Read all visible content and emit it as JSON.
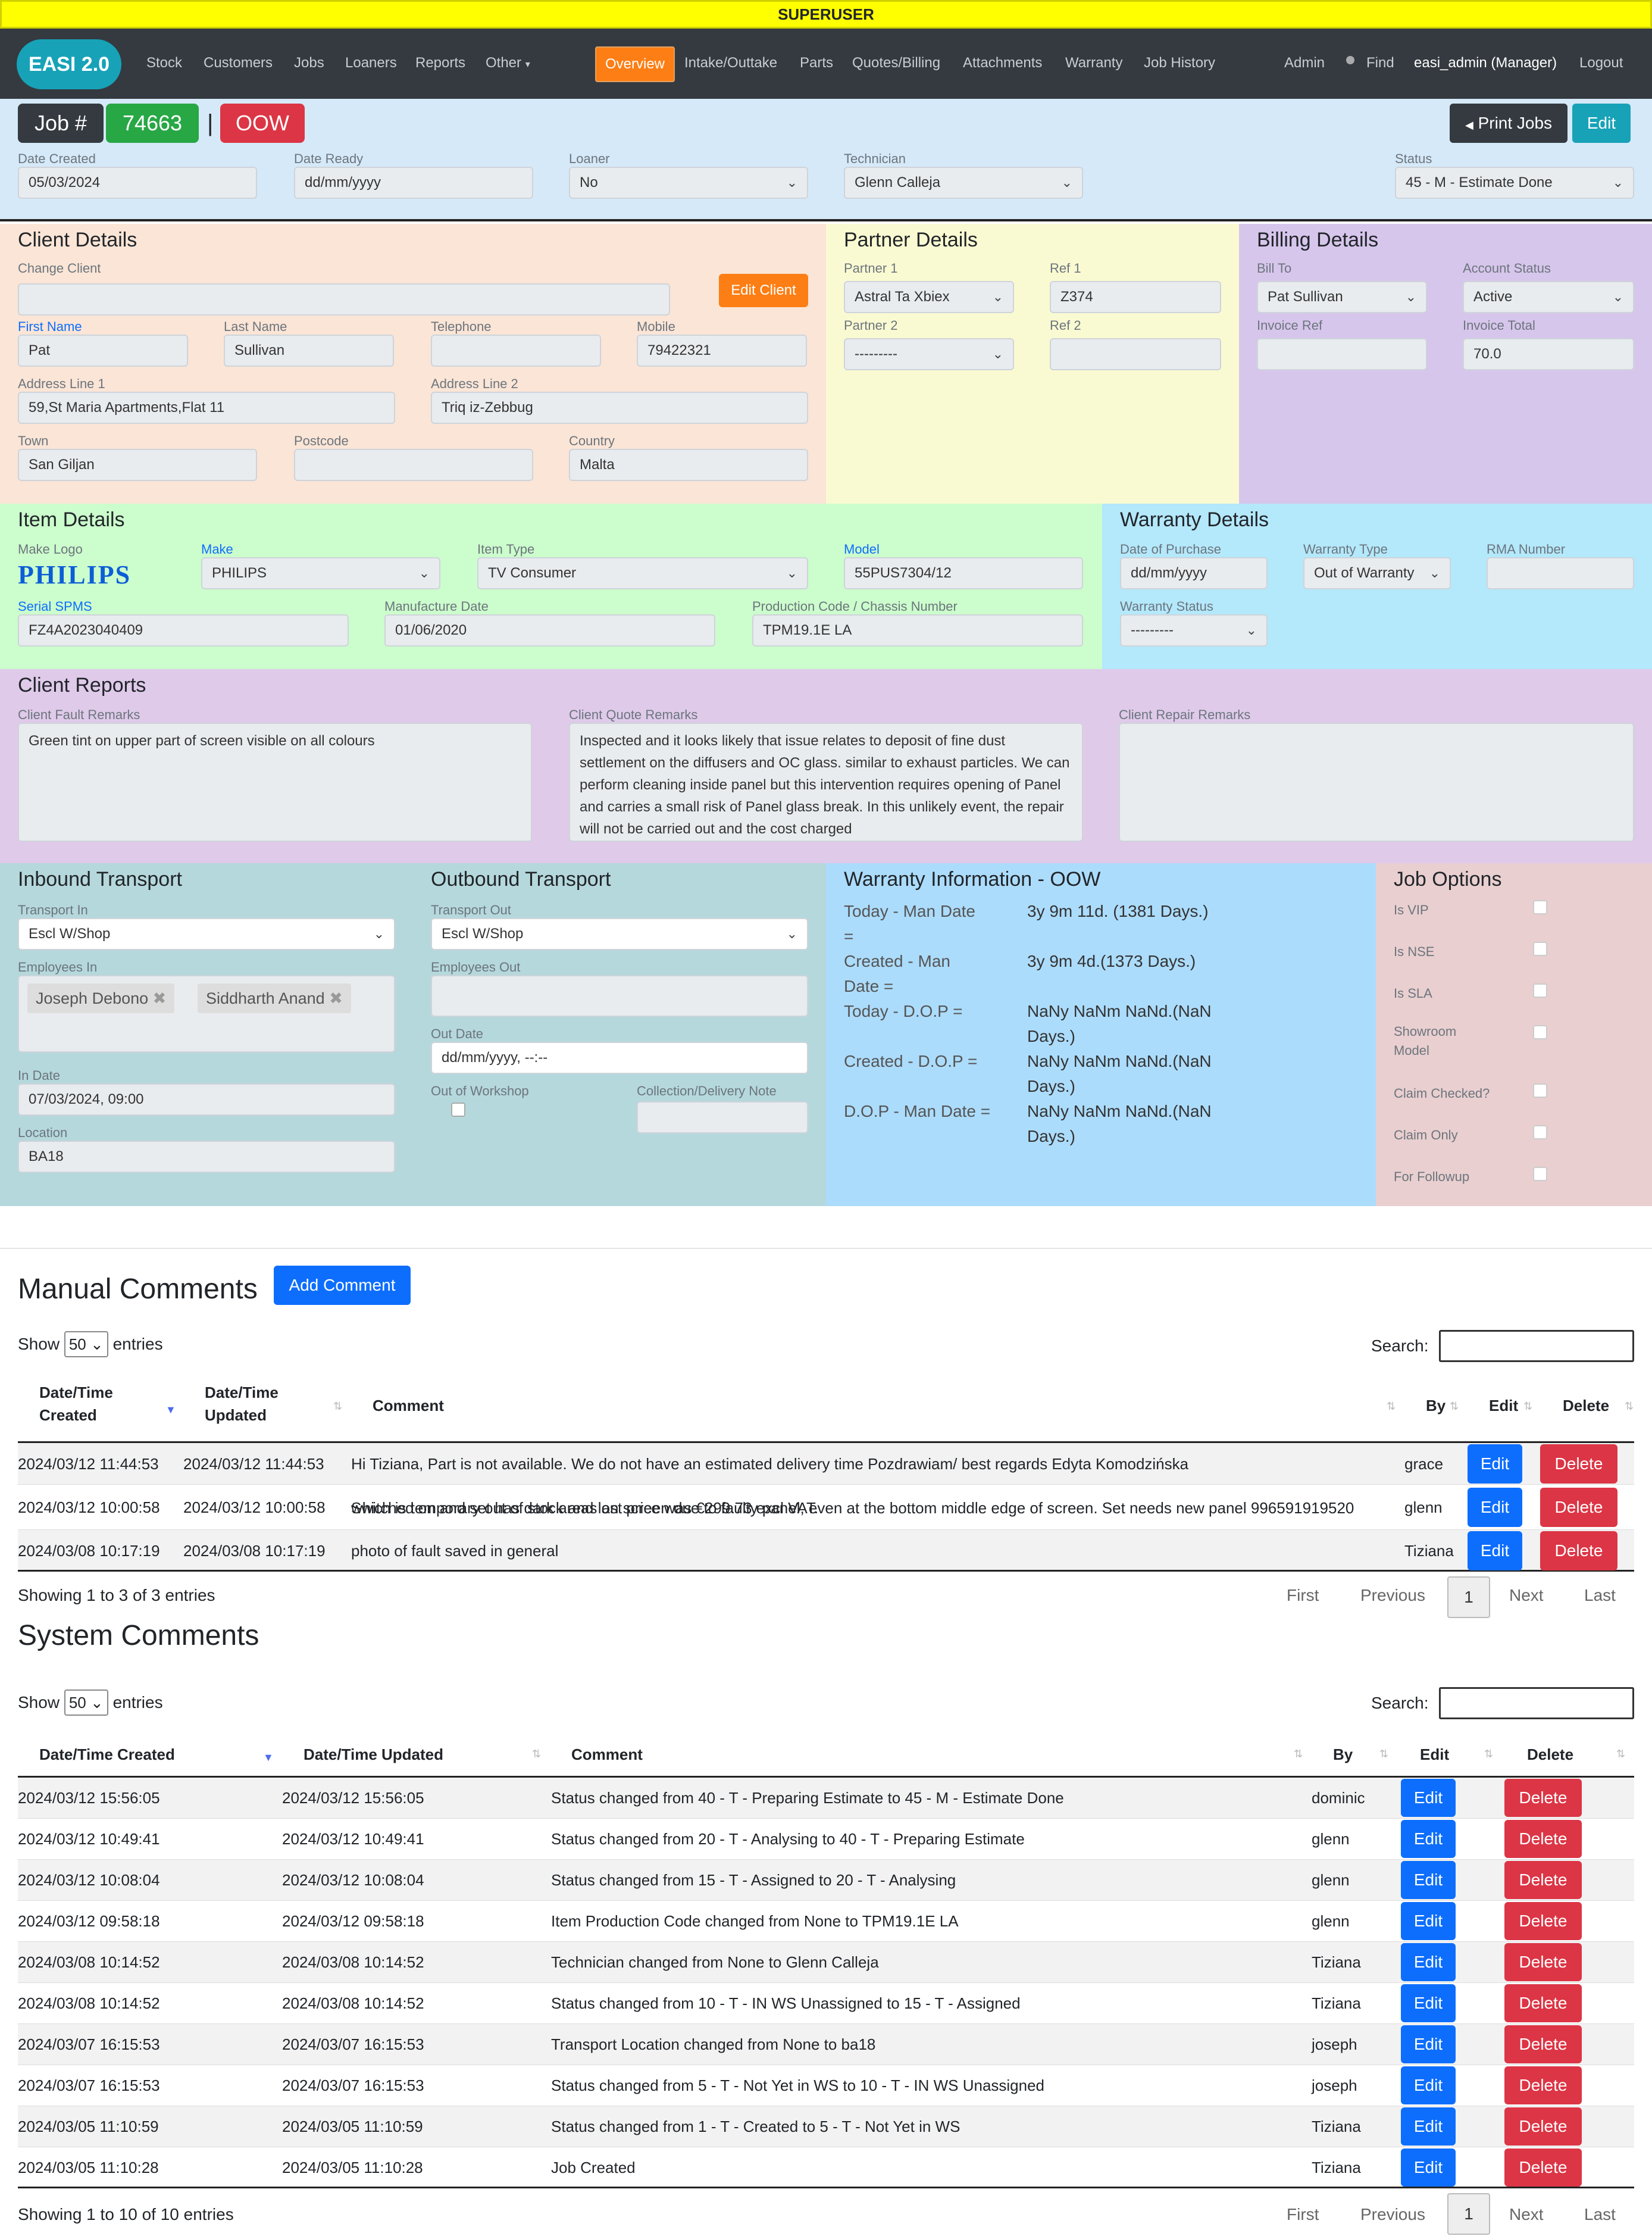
{
  "banner": "SUPERUSER",
  "brand": "EASI 2.0",
  "nav_left": [
    "Stock",
    "Customers",
    "Jobs",
    "Loaners",
    "Reports",
    "Other"
  ],
  "nav_tabs": [
    "Overview",
    "Intake/Outtake",
    "Parts",
    "Quotes/Billing",
    "Attachments",
    "Warranty",
    "Job History"
  ],
  "nav_right": {
    "admin": "Admin",
    "find": "Find",
    "user": "easi_admin (Manager)",
    "logout": "Logout"
  },
  "job": {
    "label": "Job #",
    "number": "74663",
    "sep": "|",
    "warranty": "OOW",
    "print": "Print Jobs",
    "edit": "Edit"
  },
  "header_fields": {
    "date_created": {
      "label": "Date Created",
      "value": "05/03/2024"
    },
    "date_ready": {
      "label": "Date Ready",
      "value": "dd/mm/yyyy"
    },
    "loaner": {
      "label": "Loaner",
      "value": "No"
    },
    "technician": {
      "label": "Technician",
      "value": "Glenn Calleja"
    },
    "status": {
      "label": "Status",
      "value": "45 - M - Estimate Done"
    }
  },
  "client": {
    "title": "Client Details",
    "change_label": "Change Client",
    "edit_btn": "Edit Client",
    "first_name": {
      "label": "First Name",
      "value": "Pat"
    },
    "last_name": {
      "label": "Last Name",
      "value": "Sullivan"
    },
    "telephone": {
      "label": "Telephone",
      "value": ""
    },
    "mobile": {
      "label": "Mobile",
      "value": "79422321"
    },
    "addr1": {
      "label": "Address Line 1",
      "value": "59,St Maria Apartments,Flat 11"
    },
    "addr2": {
      "label": "Address Line 2",
      "value": "Triq iz-Zebbug"
    },
    "town": {
      "label": "Town",
      "value": "San Giljan"
    },
    "postcode": {
      "label": "Postcode",
      "value": ""
    },
    "country": {
      "label": "Country",
      "value": "Malta"
    }
  },
  "partner": {
    "title": "Partner Details",
    "p1": {
      "label": "Partner 1",
      "value": "Astral Ta Xbiex"
    },
    "ref1": {
      "label": "Ref 1",
      "value": "Z374"
    },
    "p2": {
      "label": "Partner 2",
      "value": "---------"
    },
    "ref2": {
      "label": "Ref 2",
      "value": ""
    }
  },
  "billing": {
    "title": "Billing Details",
    "bill_to": {
      "label": "Bill To",
      "value": "Pat Sullivan"
    },
    "account_status": {
      "label": "Account Status",
      "value": "Active"
    },
    "invoice_ref": {
      "label": "Invoice Ref",
      "value": ""
    },
    "invoice_total": {
      "label": "Invoice Total",
      "value": "70.0"
    }
  },
  "item": {
    "title": "Item Details",
    "make_logo": {
      "label": "Make Logo",
      "value": "PHILIPS"
    },
    "make": {
      "label": "Make",
      "value": "PHILIPS"
    },
    "item_type": {
      "label": "Item Type",
      "value": "TV Consumer"
    },
    "model": {
      "label": "Model",
      "value": "55PUS7304/12"
    },
    "serial": {
      "label": "Serial SPMS",
      "value": "FZ4A2023040409"
    },
    "manufacture_date": {
      "label": "Manufacture Date",
      "value": "01/06/2020"
    },
    "production_code": {
      "label": "Production Code / Chassis Number",
      "value": "TPM19.1E LA"
    }
  },
  "warranty": {
    "title": "Warranty Details",
    "dop": {
      "label": "Date of Purchase",
      "value": "dd/mm/yyyy"
    },
    "type": {
      "label": "Warranty Type",
      "value": "Out of Warranty"
    },
    "rma": {
      "label": "RMA Number",
      "value": ""
    },
    "status": {
      "label": "Warranty Status",
      "value": "---------"
    }
  },
  "reports": {
    "title": "Client Reports",
    "fault": {
      "label": "Client Fault Remarks",
      "value": "Green tint on upper part of screen visible on all colours"
    },
    "quote": {
      "label": "Client Quote Remarks",
      "value": "Inspected and it looks likely that issue relates to deposit of fine dust settlement on the diffusers and OC glass. similar to exhaust particles. We can perform cleaning inside panel but this intervention requires opening of Panel and carries a small risk of Panel glass break. In this unlikely event, the repair will not be carried out and the cost charged"
    },
    "repair": {
      "label": "Client Repair Remarks",
      "value": ""
    }
  },
  "inbound": {
    "title": "Inbound Transport",
    "transport_in": {
      "label": "Transport In",
      "value": "Escl W/Shop"
    },
    "employees_label": "Employees In",
    "employees": [
      "Joseph Debono",
      "Siddharth Anand"
    ],
    "in_date": {
      "label": "In Date",
      "value": "07/03/2024, 09:00"
    },
    "location": {
      "label": "Location",
      "value": "BA18"
    }
  },
  "outbound": {
    "title": "Outbound Transport",
    "transport_out": {
      "label": "Transport Out",
      "value": "Escl W/Shop"
    },
    "employees_out": {
      "label": "Employees Out",
      "value": ""
    },
    "out_date": {
      "label": "Out Date",
      "value": "dd/mm/yyyy, --:--"
    },
    "out_of_workshop": "Out of Workshop",
    "collection_note": {
      "label": "Collection/Delivery Note",
      "value": ""
    }
  },
  "warranty_info": {
    "title": "Warranty Information - OOW",
    "rows": [
      {
        "k1": "Today - Man Date",
        "k2": "=",
        "v1": "3y 9m 11d. (1381 Days.)",
        "v2": ""
      },
      {
        "k1": "Created - Man",
        "k2": "Date =",
        "v1": "3y 9m 4d.(1373 Days.)",
        "v2": ""
      },
      {
        "k1": "Today - D.O.P =",
        "k2": "",
        "v1": "NaNy NaNm NaNd.(NaN",
        "v2": "Days.)"
      },
      {
        "k1": "Created - D.O.P =",
        "k2": "",
        "v1": "NaNy NaNm NaNd.(NaN",
        "v2": "Days.)"
      },
      {
        "k1": "D.O.P - Man Date =",
        "k2": "",
        "v1": "NaNy NaNm NaNd.(NaN",
        "v2": "Days.)"
      }
    ]
  },
  "job_options": {
    "title": "Job Options",
    "options": [
      "Is VIP",
      "Is NSE",
      "Is SLA",
      "Showroom",
      "Claim Checked?",
      "Claim Only",
      "For Followup"
    ],
    "option4_line2": "Model"
  },
  "manual_comments": {
    "title": "Manual Comments",
    "add_btn": "Add Comment",
    "show": "Show",
    "entries_value": "50",
    "entries": "entries",
    "search": "Search:",
    "headers": [
      "Date/Time",
      "Created",
      "Date/Time",
      "Updated",
      "Comment",
      "By",
      "Edit",
      "Delete"
    ],
    "rows": [
      {
        "created": "2024/03/12 11:44:53",
        "updated": "2024/03/12 11:44:53",
        "comment": "Hi Tiziana, Part is not available. We do not have an estimated delivery time Pozdrawiam/ best regards Edyta Komodzińska",
        "comment2": "",
        "by": "grace"
      },
      {
        "created": "2024/03/12 10:00:58",
        "updated": "2024/03/12 10:00:58",
        "comment": "Switched on and set has dark areas on screen due to faulty panel, even at the bottom middle edge of screen. Set needs new panel 996591919520",
        "comment2": "which is temporary out of stock and last price was €299.73 excl VAT.",
        "by": "glenn"
      },
      {
        "created": "2024/03/08 10:17:19",
        "updated": "2024/03/08 10:17:19",
        "comment": "photo of fault saved in general",
        "comment2": "",
        "by": "Tiziana"
      }
    ],
    "edit": "Edit",
    "delete": "Delete",
    "info": "Showing 1 to 3 of 3 entries",
    "pager": [
      "First",
      "Previous",
      "1",
      "Next",
      "Last"
    ]
  },
  "system_comments": {
    "title": "System Comments",
    "show": "Show",
    "entries_value": "50",
    "entries": "entries",
    "search": "Search:",
    "headers": [
      "Date/Time Created",
      "Date/Time Updated",
      "Comment",
      "By",
      "Edit",
      "Delete"
    ],
    "rows": [
      {
        "created": "2024/03/12 15:56:05",
        "updated": "2024/03/12 15:56:05",
        "comment": "Status changed from 40 - T - Preparing Estimate to 45 - M - Estimate Done",
        "by": "dominic"
      },
      {
        "created": "2024/03/12 10:49:41",
        "updated": "2024/03/12 10:49:41",
        "comment": "Status changed from 20 - T - Analysing to 40 - T - Preparing Estimate",
        "by": "glenn"
      },
      {
        "created": "2024/03/12 10:08:04",
        "updated": "2024/03/12 10:08:04",
        "comment": "Status changed from 15 - T - Assigned to 20 - T - Analysing",
        "by": "glenn"
      },
      {
        "created": "2024/03/12 09:58:18",
        "updated": "2024/03/12 09:58:18",
        "comment": "Item Production Code changed from None to TPM19.1E LA",
        "by": "glenn"
      },
      {
        "created": "2024/03/08 10:14:52",
        "updated": "2024/03/08 10:14:52",
        "comment": "Technician changed from None to Glenn Calleja",
        "by": "Tiziana"
      },
      {
        "created": "2024/03/08 10:14:52",
        "updated": "2024/03/08 10:14:52",
        "comment": "Status changed from 10 - T - IN WS Unassigned to 15 - T - Assigned",
        "by": "Tiziana"
      },
      {
        "created": "2024/03/07 16:15:53",
        "updated": "2024/03/07 16:15:53",
        "comment": "Transport Location changed from None to ba18",
        "by": "joseph"
      },
      {
        "created": "2024/03/07 16:15:53",
        "updated": "2024/03/07 16:15:53",
        "comment": "Status changed from 5 - T - Not Yet in WS to 10 - T - IN WS Unassigned",
        "by": "joseph"
      },
      {
        "created": "2024/03/05 11:10:59",
        "updated": "2024/03/05 11:10:59",
        "comment": "Status changed from 1 - T - Created to 5 - T - Not Yet in WS",
        "by": "Tiziana"
      },
      {
        "created": "2024/03/05 11:10:28",
        "updated": "2024/03/05 11:10:28",
        "comment": "Job Created",
        "by": "Tiziana"
      }
    ],
    "edit": "Edit",
    "delete": "Delete",
    "info": "Showing 1 to 10 of 10 entries",
    "pager": [
      "First",
      "Previous",
      "1",
      "Next",
      "Last"
    ]
  },
  "colors": {
    "nav": "#343a40",
    "accent": "#fd7e14",
    "brand": "#17a2b8",
    "header_bg": "#d6e9f8",
    "client_bg": "#fbe5d6",
    "partner_bg": "#fafad2",
    "billing_bg": "#d7c6ec",
    "item_bg": "#ccfdcc",
    "warranty_bg": "#b4e8fb",
    "reports_bg": "#dfcaea",
    "transport_bg": "#b5d8dc",
    "warranty_info_bg": "#acdcfc",
    "options_bg": "#e9cfd0"
  }
}
